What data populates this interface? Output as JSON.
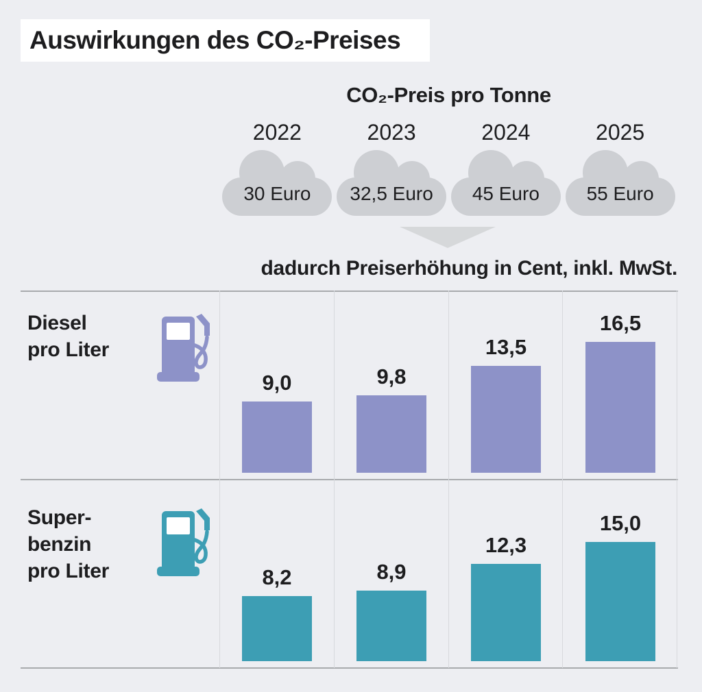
{
  "title": "Auswirkungen des CO₂-Preises",
  "co2_header": "CO₂-Preis pro Tonne",
  "co2_prices": [
    {
      "year": "2022",
      "price": "30 Euro"
    },
    {
      "year": "2023",
      "price": "32,5 Euro"
    },
    {
      "year": "2024",
      "price": "45 Euro"
    },
    {
      "year": "2025",
      "price": "55 Euro"
    }
  ],
  "subtitle": "dadurch Preiserhöhung in Cent, inkl. MwSt.",
  "rows": [
    {
      "name": "diesel",
      "label_lines": [
        "Diesel",
        "pro Liter"
      ],
      "color": "#8d92c8"
    },
    {
      "name": "superbenzin",
      "label_lines": [
        "Super-",
        "benzin",
        "pro Liter"
      ],
      "color": "#3d9eb4"
    }
  ],
  "colors": {
    "background": "#edeef2",
    "cloud": "#cdcfd3",
    "arrow": "#d6d8da",
    "diesel": "#8d92c8",
    "superbenzin": "#3d9eb4",
    "text": "#1d1d1f"
  },
  "chart_data": {
    "type": "bar",
    "title": "Auswirkungen des CO₂-Preises",
    "subtitle": "dadurch Preiserhöhung in Cent, inkl. MwSt.",
    "categories": [
      "2022",
      "2023",
      "2024",
      "2025"
    ],
    "co2_price_per_tonne": [
      "30 Euro",
      "32,5 Euro",
      "45 Euro",
      "55 Euro"
    ],
    "unit": "Cent",
    "ylim": [
      0,
      17
    ],
    "grid": "column-separators",
    "series": [
      {
        "name": "Diesel pro Liter",
        "values": [
          9.0,
          9.8,
          13.5,
          16.5
        ],
        "display": [
          "9,0",
          "9,8",
          "13,5",
          "16,5"
        ],
        "color": "#8d92c8"
      },
      {
        "name": "Superbenzin pro Liter",
        "values": [
          8.2,
          8.9,
          12.3,
          15.0
        ],
        "display": [
          "8,2",
          "8,9",
          "12,3",
          "15,0"
        ],
        "color": "#3d9eb4"
      }
    ]
  }
}
